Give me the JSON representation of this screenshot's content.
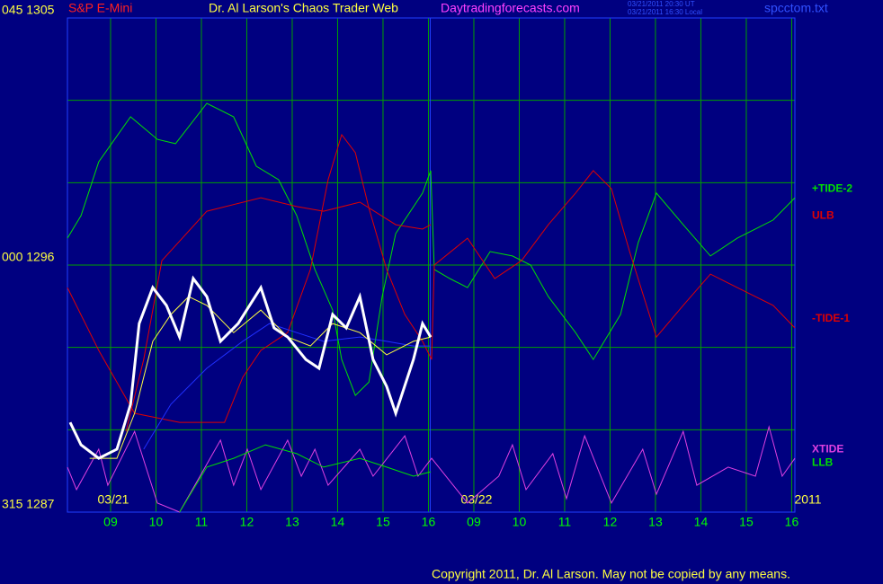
{
  "chart_data": {
    "type": "line",
    "header": "S&P E-Mini",
    "title": "Dr. Al Larson's Chaos Trader Web",
    "site": "Daytradingforecasts.com",
    "timestamps": [
      "03/21/2011 20:30 UT",
      "03/21/2011 16:30 Local"
    ],
    "file": "spcctom.txt",
    "copyright": "Copyright 2011, Dr. Al Larson. May not be copied by any means.",
    "date_labels": [
      {
        "text": "03/21",
        "x": 9
      },
      {
        "text": "03/22",
        "x": 17
      },
      {
        "text": "2011",
        "x": 24
      }
    ],
    "xlim": [
      8.05,
      24.07
    ],
    "xticks": [
      {
        "value": 9,
        "label": "09"
      },
      10,
      11,
      12,
      13,
      14,
      15,
      16,
      {
        "value": 17,
        "label": "09"
      },
      {
        "value": 18,
        "label": "10"
      },
      {
        "value": 19,
        "label": "11"
      },
      {
        "value": 20,
        "label": "12"
      },
      {
        "value": 21,
        "label": "13"
      },
      {
        "value": 22,
        "label": "14"
      },
      {
        "value": 23,
        "label": "15"
      },
      {
        "value": 24,
        "label": "16"
      }
    ],
    "ylim": [
      1287,
      1305
    ],
    "yticks": [
      {
        "value": 1305,
        "label": "045 1305"
      },
      {
        "value": 1296,
        "label": "000 1296"
      },
      {
        "value": 1287,
        "label": "315 1287"
      }
    ],
    "ygrid": [
      1302,
      1299,
      1293,
      1290
    ],
    "grid": true,
    "series": [
      {
        "name": "+TIDE-2",
        "color": "#00e000",
        "x": [
          8.05,
          8.35,
          8.74,
          9.44,
          10.03,
          10.43,
          11.12,
          11.71,
          12.21,
          12.7,
          13.1,
          13.5,
          13.89,
          14.09,
          14.39,
          14.69,
          14.98,
          15.28,
          15.87,
          16.05,
          16.13,
          16.47,
          16.86,
          17.36,
          17.85,
          18.25,
          18.64,
          19.24,
          19.63,
          20.23,
          20.62,
          21.02,
          21.61,
          22.21,
          22.8,
          23.59,
          24.07
        ],
        "values": [
          1296.98,
          1297.8,
          1299.76,
          1301.4,
          1300.58,
          1300.42,
          1301.89,
          1301.4,
          1299.6,
          1299.11,
          1297.8,
          1295.84,
          1294.36,
          1292.56,
          1291.25,
          1291.74,
          1294.85,
          1297.15,
          1298.62,
          1299.44,
          1295.84,
          1295.51,
          1295.18,
          1296.49,
          1296.33,
          1296,
          1294.85,
          1293.54,
          1292.56,
          1294.2,
          1296.82,
          1298.62,
          1297.47,
          1296.33,
          1296.98,
          1297.64,
          1298.45
        ]
      },
      {
        "name": "ULB",
        "color": "#e00000",
        "x": [
          9.34,
          9.73,
          10.13,
          11.12,
          12.31,
          13.1,
          13.69,
          14.49,
          15.28,
          15.87,
          16.05
        ],
        "values": [
          1289.94,
          1292.56,
          1296.16,
          1297.96,
          1298.45,
          1298.13,
          1297.96,
          1298.29,
          1297.47,
          1297.31,
          1297.47
        ]
      },
      {
        "name": "-TIDE-1",
        "color": "#e00000",
        "x": [
          8.05,
          8.74,
          9.53,
          10.52,
          11.51,
          11.91,
          12.31,
          12.9,
          13.4,
          13.79,
          14.09,
          14.39,
          14.68,
          15.08,
          15.48,
          15.87,
          16.07,
          16.13,
          16.86,
          17.46,
          18.05,
          18.64,
          19.24,
          19.63,
          20.03,
          20.43,
          21.02,
          21.61,
          22.21,
          22.8,
          23.59,
          24.07
        ],
        "values": [
          1295.18,
          1292.89,
          1290.6,
          1290.27,
          1290.27,
          1291.91,
          1292.89,
          1293.54,
          1295.84,
          1299.11,
          1300.75,
          1300.09,
          1298.13,
          1295.84,
          1294.2,
          1293.22,
          1292.56,
          1296,
          1296.98,
          1295.51,
          1296.16,
          1297.47,
          1298.62,
          1299.44,
          1298.78,
          1296.49,
          1293.38,
          1294.53,
          1295.67,
          1295.18,
          1294.53,
          1293.71
        ]
      },
      {
        "name": "XTIDE",
        "color": "#e040e0",
        "x": [
          8.05,
          8.25,
          8.74,
          8.94,
          9.53,
          10.03,
          10.52,
          11.42,
          11.71,
          12.01,
          12.31,
          12.9,
          13.2,
          13.5,
          13.79,
          14.49,
          14.78,
          15.48,
          15.77,
          16.07,
          16.86,
          17.55,
          17.85,
          18.15,
          18.74,
          19.04,
          19.44,
          20.03,
          20.72,
          21.02,
          21.61,
          21.91,
          22.6,
          23.2,
          23.5,
          23.79,
          24.07
        ],
        "values": [
          1288.64,
          1287.82,
          1289.29,
          1287.98,
          1289.94,
          1287.33,
          1287,
          1289.62,
          1287.98,
          1289.29,
          1287.82,
          1289.62,
          1288.31,
          1289.29,
          1287.98,
          1289.29,
          1288.31,
          1289.78,
          1288.31,
          1288.96,
          1287.33,
          1288.31,
          1289.45,
          1287.82,
          1289.13,
          1287.49,
          1289.78,
          1287.33,
          1289.29,
          1287.65,
          1289.94,
          1287.98,
          1288.64,
          1288.31,
          1290.11,
          1288.31,
          1288.96
        ]
      },
      {
        "name": "LLB",
        "color": "#00e000",
        "x": [
          10.52,
          11.12,
          11.71,
          12.41,
          13.1,
          13.69,
          14.49,
          15.08,
          15.67,
          16.05
        ],
        "values": [
          1287,
          1288.64,
          1288.96,
          1289.45,
          1289.13,
          1288.64,
          1288.96,
          1288.64,
          1288.31,
          1288.47
        ]
      },
      {
        "color": "#2030ff",
        "x": [
          9.73,
          10.33,
          11.12,
          11.91,
          12.5,
          13.1,
          13.69,
          14.49,
          15.08,
          15.67,
          16.05
        ],
        "values": [
          1289.29,
          1290.93,
          1292.24,
          1293.22,
          1293.87,
          1293.54,
          1293.22,
          1293.38,
          1293.22,
          1293.05,
          1293.05
        ]
      },
      {
        "color": "#ffff40",
        "x": [
          8.54,
          9.14,
          9.53,
          9.93,
          10.33,
          10.72,
          11.12,
          11.71,
          12.31,
          12.9,
          13.4,
          13.89,
          14.49,
          15.08,
          15.67,
          16.05
        ],
        "values": [
          1288.96,
          1288.96,
          1290.6,
          1293.22,
          1294.2,
          1294.85,
          1294.53,
          1293.54,
          1294.36,
          1293.38,
          1293.05,
          1293.87,
          1293.54,
          1292.73,
          1293.22,
          1293.38
        ]
      },
      {
        "color": "#ffffff",
        "x": [
          8.11,
          8.35,
          8.74,
          9.14,
          9.44,
          9.63,
          9.93,
          10.23,
          10.52,
          10.82,
          11.12,
          11.42,
          11.81,
          12.31,
          12.6,
          12.9,
          13.3,
          13.59,
          13.89,
          14.19,
          14.49,
          14.78,
          15.08,
          15.28,
          15.67,
          15.87,
          16.05
        ],
        "values": [
          1290.27,
          1289.45,
          1288.96,
          1289.29,
          1290.93,
          1293.87,
          1295.18,
          1294.53,
          1293.38,
          1295.51,
          1294.85,
          1293.22,
          1293.87,
          1295.18,
          1293.71,
          1293.38,
          1292.56,
          1292.24,
          1294.2,
          1293.71,
          1294.85,
          1292.56,
          1291.58,
          1290.6,
          1292.56,
          1293.87,
          1293.38
        ]
      }
    ]
  }
}
